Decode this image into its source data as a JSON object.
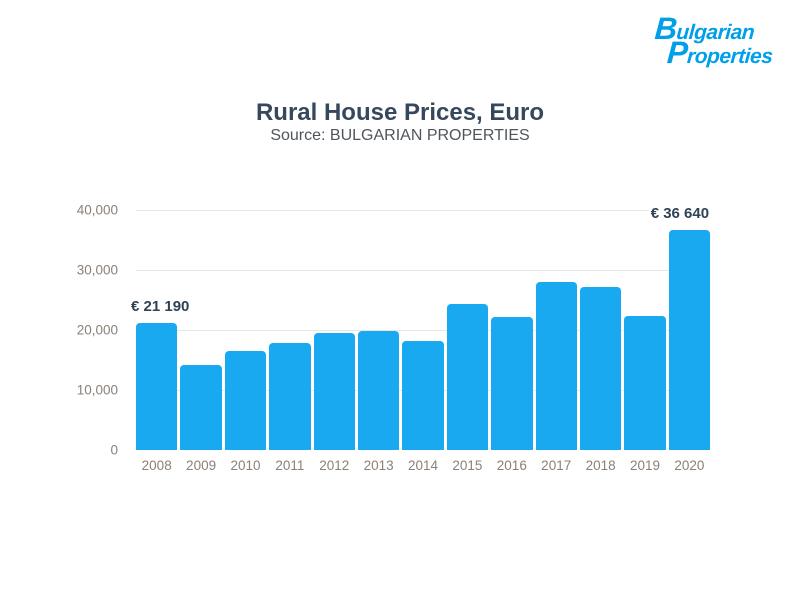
{
  "logo": {
    "line1": "Bulgarian",
    "line2": "Properties",
    "color": "#009fe9"
  },
  "header": {
    "title": "Rural House Prices, Euro",
    "subtitle": "Source: BULGARIAN PROPERTIES"
  },
  "chart_data": {
    "type": "bar",
    "title": "Rural House Prices, Euro",
    "subtitle": "Source: BULGARIAN PROPERTIES",
    "categories": [
      "2008",
      "2009",
      "2010",
      "2011",
      "2012",
      "2013",
      "2014",
      "2015",
      "2016",
      "2017",
      "2018",
      "2019",
      "2020"
    ],
    "values": [
      21190,
      14100,
      16500,
      17800,
      19500,
      19900,
      18200,
      24300,
      22100,
      28000,
      27200,
      22400,
      36640
    ],
    "annotations": [
      {
        "category": "2008",
        "text": "€ 21 190",
        "align": "left"
      },
      {
        "category": "2020",
        "text": "€ 36 640",
        "align": "right"
      }
    ],
    "xlabel": "",
    "ylabel": "",
    "ylim": [
      0,
      40000
    ],
    "yticks": [
      0,
      10000,
      20000,
      30000,
      40000
    ],
    "ytick_labels": [
      "0",
      "10,000",
      "20,000",
      "30,000",
      "40,000"
    ],
    "grid": true,
    "legend": false,
    "bar_color": "#18a9f1",
    "axis_label_color": "#8a8178",
    "annotation_color": "#2f4254",
    "gridline_color": "#e8e7e4"
  }
}
